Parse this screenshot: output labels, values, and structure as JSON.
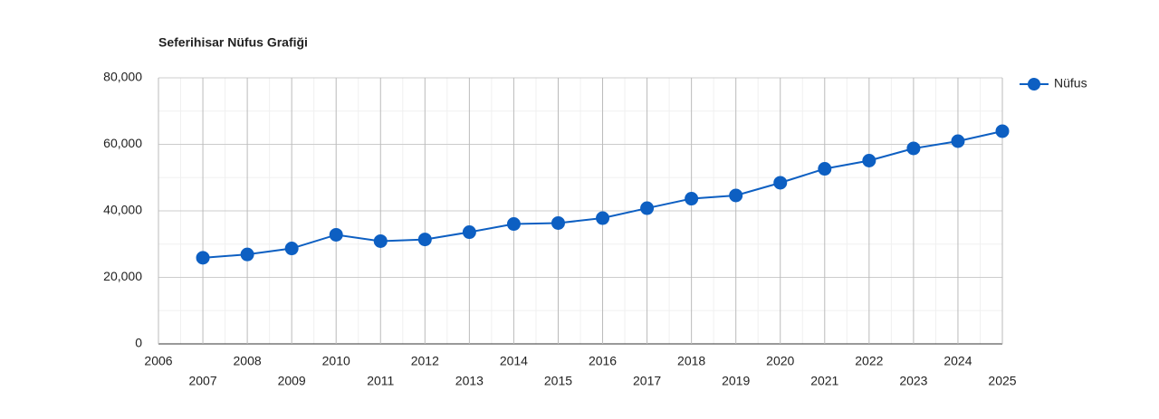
{
  "chart_data": {
    "type": "line",
    "title": "Seferihisar Nüfus Grafiği",
    "x": [
      2007,
      2008,
      2009,
      2010,
      2011,
      2012,
      2013,
      2014,
      2015,
      2016,
      2017,
      2018,
      2019,
      2020,
      2021,
      2022,
      2023,
      2024,
      2025
    ],
    "series": [
      {
        "name": "Nüfus",
        "color": "#0d5fc2",
        "values": [
          25900,
          26900,
          28700,
          32800,
          30900,
          31400,
          33600,
          36050,
          36330,
          37820,
          40800,
          43670,
          44630,
          48440,
          52650,
          55100,
          58780,
          60950,
          63950
        ]
      }
    ],
    "xlim": [
      2006,
      2025
    ],
    "xticks": [
      2006,
      2007,
      2008,
      2009,
      2010,
      2011,
      2012,
      2013,
      2014,
      2015,
      2016,
      2017,
      2018,
      2019,
      2020,
      2021,
      2022,
      2023,
      2024,
      2025
    ],
    "ylim": [
      0,
      80000
    ],
    "yticks": [
      0,
      {
        "value": 20000,
        "label": "20,000"
      },
      {
        "value": 40000,
        "label": "40,000"
      },
      {
        "value": 60000,
        "label": "60,000"
      },
      {
        "value": 80000,
        "label": "80,000"
      }
    ],
    "grid": true,
    "legend": "right"
  }
}
